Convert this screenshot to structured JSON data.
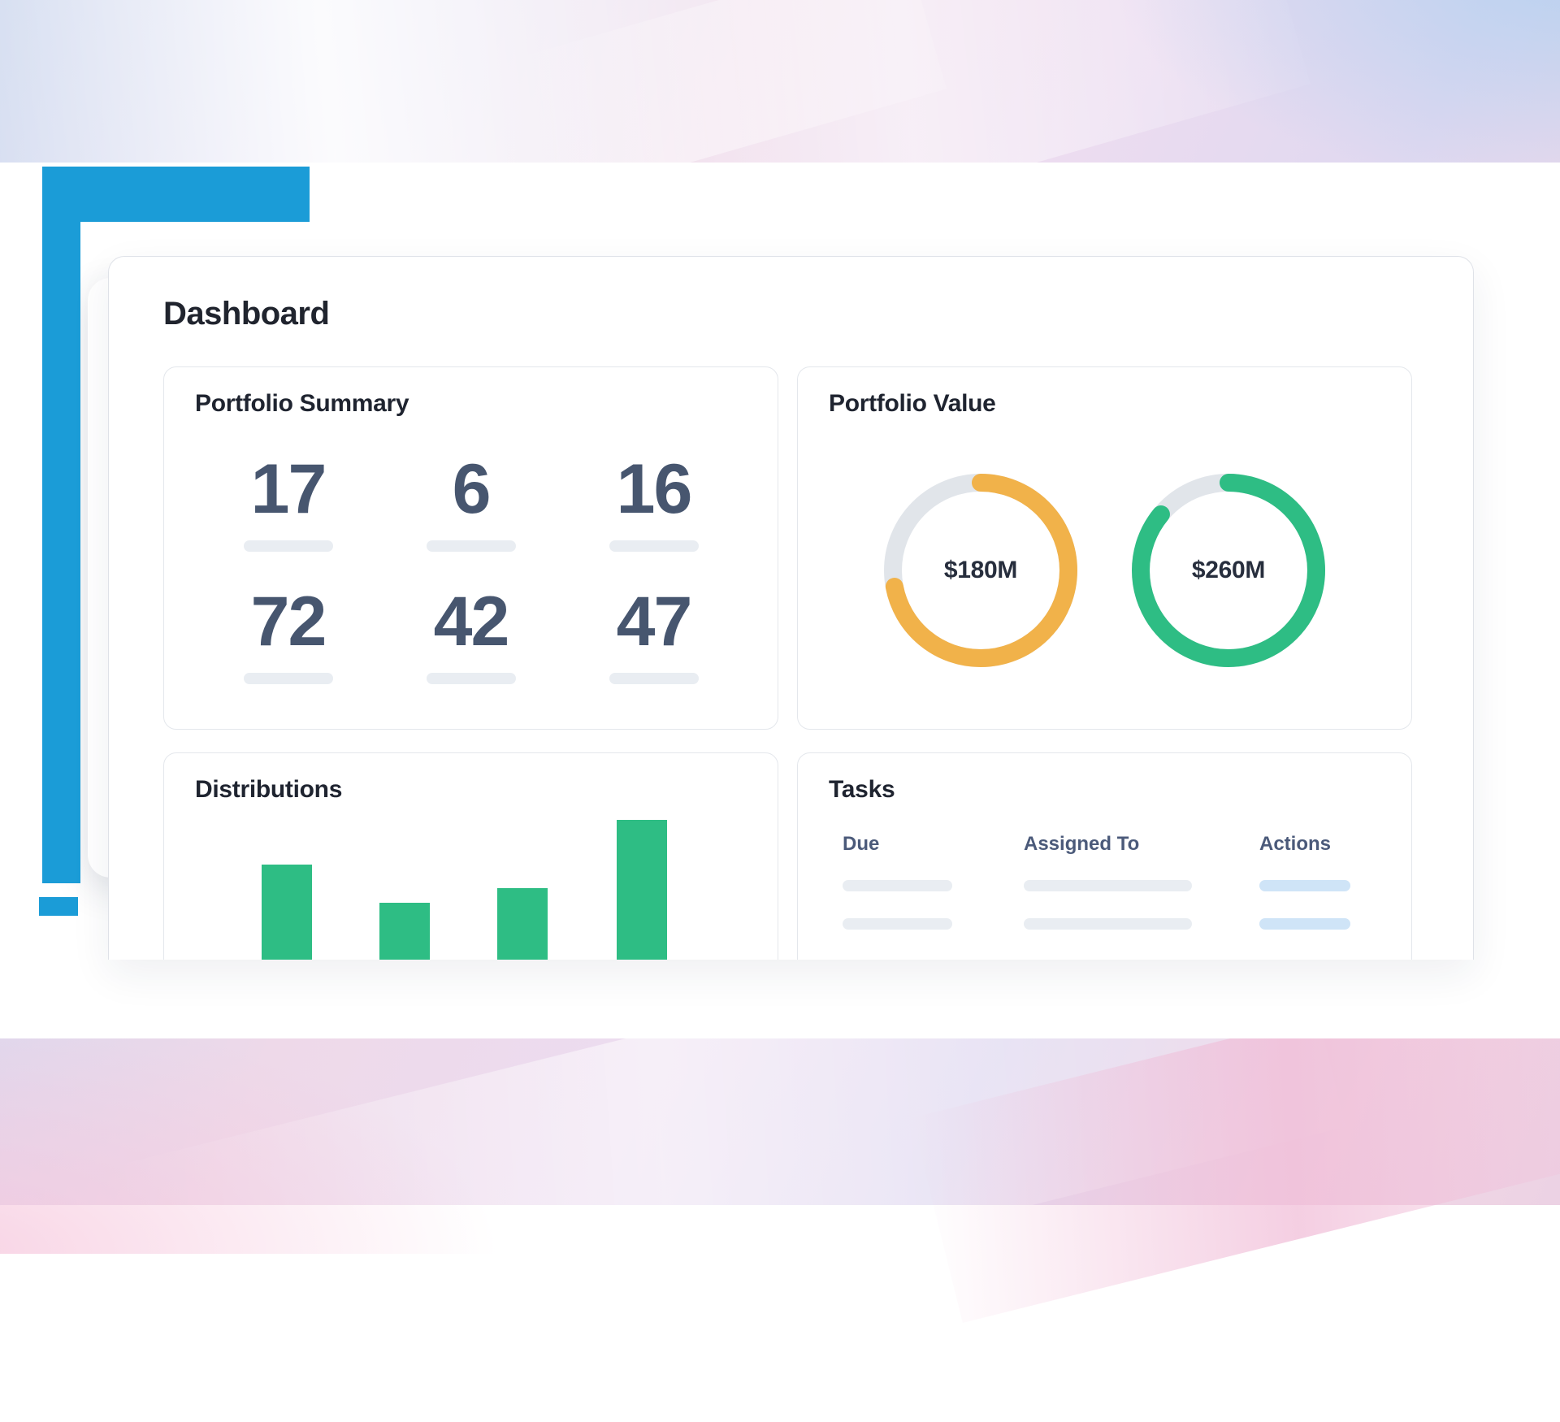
{
  "colors": {
    "accent_blue": "#1b9cd7",
    "bar_green": "#2ebd84",
    "donut_orange": "#f1b24a",
    "donut_green": "#2ebd84",
    "donut_track": "#e1e5ea",
    "skeleton_grey": "#e9edf2",
    "action_pill_blue": "#cfe4f7"
  },
  "dashboard": {
    "title": "Dashboard",
    "portfolio_summary": {
      "title": "Portfolio Summary",
      "stats": [
        "17",
        "6",
        "16",
        "72",
        "42",
        "47"
      ]
    },
    "portfolio_value": {
      "title": "Portfolio Value",
      "chart_data": {
        "type": "donut",
        "series": [
          {
            "label": "$180M",
            "percent": 72,
            "color": "#f1b24a"
          },
          {
            "label": "$260M",
            "percent": 86,
            "color": "#2ebd84"
          }
        ]
      }
    },
    "distributions": {
      "title": "Distributions",
      "chart_data": {
        "type": "bar",
        "values": [
          45,
          27,
          34,
          66
        ],
        "unit": "relative",
        "color": "#2ebd84"
      }
    },
    "tasks": {
      "title": "Tasks",
      "columns": [
        "Due",
        "Assigned To",
        "Actions"
      ],
      "row_count": 2
    }
  }
}
